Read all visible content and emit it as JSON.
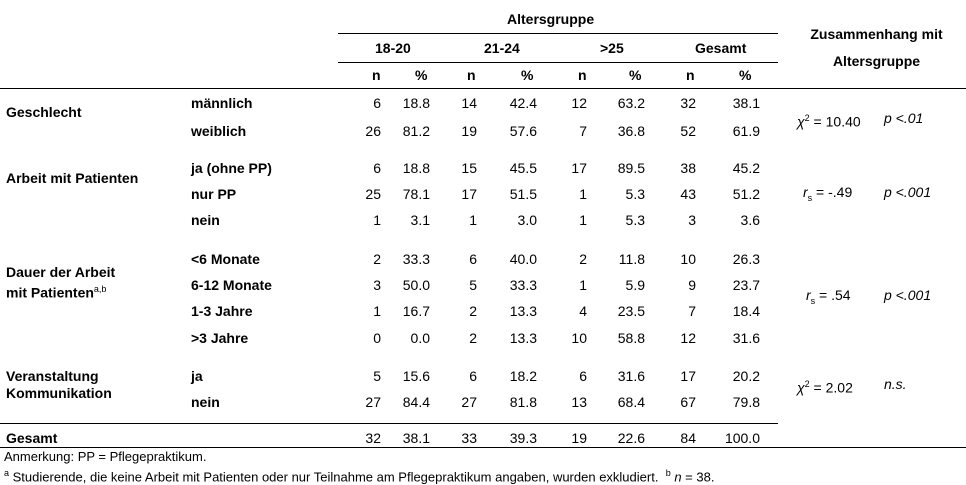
{
  "header": {
    "group_title": "Altersgruppe",
    "corr_title_1": "Zusammenhang mit",
    "corr_title_2": "Altersgruppe",
    "groups": [
      "18-20",
      "21-24",
      ">25",
      "Gesamt"
    ],
    "n_label": "n",
    "pct_label": "%"
  },
  "rows": [
    {
      "cat": "Geschlecht",
      "sub": "männlich",
      "vals": [
        "6",
        "18.8",
        "14",
        "42.4",
        "12",
        "63.2",
        "32",
        "38.1"
      ]
    },
    {
      "cat": "",
      "sub": "weiblich",
      "vals": [
        "26",
        "81.2",
        "19",
        "57.6",
        "7",
        "36.8",
        "52",
        "61.9"
      ]
    },
    {
      "cat": "Arbeit mit Patienten",
      "sub": "ja (ohne PP)",
      "vals": [
        "6",
        "18.8",
        "15",
        "45.5",
        "17",
        "89.5",
        "38",
        "45.2"
      ]
    },
    {
      "cat": "",
      "sub": "nur PP",
      "vals": [
        "25",
        "78.1",
        "17",
        "51.5",
        "1",
        "5.3",
        "43",
        "51.2"
      ]
    },
    {
      "cat": "",
      "sub": "nein",
      "vals": [
        "1",
        "3.1",
        "1",
        "3.0",
        "1",
        "5.3",
        "3",
        "3.6"
      ]
    },
    {
      "cat": "",
      "sub": "<6 Monate",
      "vals": [
        "2",
        "33.3",
        "6",
        "40.0",
        "2",
        "11.8",
        "10",
        "26.3"
      ]
    },
    {
      "cat": "",
      "sub": "6-12 Monate",
      "vals": [
        "3",
        "50.0",
        "5",
        "33.3",
        "1",
        "5.9",
        "9",
        "23.7"
      ]
    },
    {
      "cat": "",
      "sub": "1-3 Jahre",
      "vals": [
        "1",
        "16.7",
        "2",
        "13.3",
        "4",
        "23.5",
        "7",
        "18.4"
      ]
    },
    {
      "cat": "",
      "sub": ">3 Jahre",
      "vals": [
        "0",
        "0.0",
        "2",
        "13.3",
        "10",
        "58.8",
        "12",
        "31.6"
      ]
    },
    {
      "cat": "",
      "sub": "ja",
      "vals": [
        "5",
        "15.6",
        "6",
        "18.2",
        "6",
        "31.6",
        "17",
        "20.2"
      ]
    },
    {
      "cat": "",
      "sub": "nein",
      "vals": [
        "27",
        "84.4",
        "27",
        "81.8",
        "13",
        "68.4",
        "67",
        "79.8"
      ]
    },
    {
      "cat": "Gesamt",
      "sub": "",
      "vals": [
        "32",
        "38.1",
        "33",
        "39.3",
        "19",
        "22.6",
        "84",
        "100.0"
      ]
    }
  ],
  "multiline_cats": {
    "dauer_1": "Dauer der Arbeit",
    "dauer_2": "mit Patienten",
    "dauer_sup": "a,b",
    "veranst_1": "Veranstaltung",
    "veranst_2": "Kommunikation"
  },
  "stats": {
    "geschlecht": {
      "sym": "χ",
      "sup": "2",
      "val": " = 10.40",
      "p": "p <.01"
    },
    "arbeit": {
      "sym": "r",
      "sub": "s",
      "val": " = -.49",
      "p": "p <.001"
    },
    "dauer": {
      "sym": "r",
      "sub": "s",
      "val": " = .54",
      "p": "p <.001"
    },
    "veranst": {
      "sym": "χ",
      "sup": "2",
      "val": " = 2.02",
      "p": "n.s."
    }
  },
  "notes": {
    "anmerkung": "Anmerkung: PP = Pflegepraktikum.",
    "foot_a_mark": "a",
    "foot_a": " Studierende, die keine Arbeit mit Patienten oder nur Teilnahme am Pflegepraktikum angaben, wurden exkludiert.",
    "foot_b_mark": "b",
    "foot_b_n": "n",
    "foot_b_val": " = 38."
  }
}
